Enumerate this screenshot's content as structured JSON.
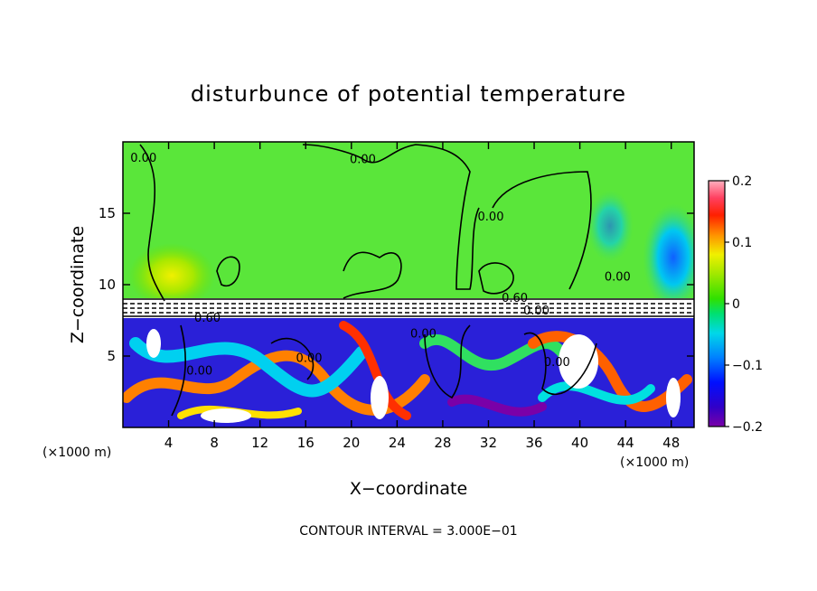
{
  "chart_data": {
    "type": "heatmap",
    "title": "disturbunce of potential temperature",
    "xlabel": "X−coordinate",
    "ylabel": "Z−coordinate",
    "x_unit_left": "(×1000 m)",
    "x_unit_right": "(×1000 m)",
    "footer": "CONTOUR INTERVAL = 3.000E−01",
    "xlim": [
      0,
      50
    ],
    "ylim": [
      0,
      20
    ],
    "x_ticks": [
      4,
      8,
      12,
      16,
      20,
      24,
      28,
      32,
      36,
      40,
      44,
      48
    ],
    "y_ticks": [
      5,
      10,
      15
    ],
    "colorbar": {
      "range": [
        -0.2,
        0.2
      ],
      "tick_values": [
        0.2,
        0.1,
        0,
        -0.1,
        -0.2
      ],
      "tick_labels": [
        "0.2",
        "0.1",
        "0",
        "−0.1",
        "−0.2"
      ]
    },
    "contour_labels": [
      {
        "text": "0.00",
        "x": 1.8,
        "y": 18.6
      },
      {
        "text": "0.00",
        "x": 21.0,
        "y": 18.5
      },
      {
        "text": "0.00",
        "x": 32.2,
        "y": 14.5
      },
      {
        "text": "0.00",
        "x": 43.3,
        "y": 10.3
      },
      {
        "text": "0.60",
        "x": 34.3,
        "y": 8.8
      },
      {
        "text": "0.00",
        "x": 36.2,
        "y": 7.9
      },
      {
        "text": "0.60",
        "x": 7.4,
        "y": 7.4
      },
      {
        "text": "0.00",
        "x": 6.7,
        "y": 3.7
      },
      {
        "text": "0.00",
        "x": 16.3,
        "y": 4.6
      },
      {
        "text": "0.00",
        "x": 26.3,
        "y": 6.3
      },
      {
        "text": "0.00",
        "x": 38.0,
        "y": 4.3
      }
    ]
  }
}
